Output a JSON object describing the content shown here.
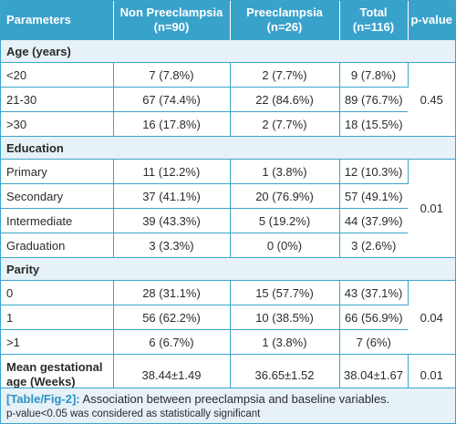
{
  "headers": [
    "Parameters",
    "Non Preeclampsia\n(n=90)",
    "Preeclampsia\n(n=26)",
    "Total\n(n=116)",
    "p-value"
  ],
  "sections": [
    {
      "title": "Age (years)",
      "p_value": "0.45",
      "rows": [
        [
          "<20",
          "7 (7.8%)",
          "2 (7.7%)",
          "9 (7.8%)"
        ],
        [
          "21-30",
          "67 (74.4%)",
          "22 (84.6%)",
          "89 (76.7%)"
        ],
        [
          ">30",
          "16 (17.8%)",
          "2 (7.7%)",
          "18 (15.5%)"
        ]
      ]
    },
    {
      "title": "Education",
      "p_value": "0.01",
      "rows": [
        [
          "Primary",
          "11 (12.2%)",
          "1 (3.8%)",
          "12 (10.3%)"
        ],
        [
          "Secondary",
          "37 (41.1%)",
          "20 (76.9%)",
          "57 (49.1%)"
        ],
        [
          "Intermediate",
          "39 (43.3%)",
          "5 (19.2%)",
          "44 (37.9%)"
        ],
        [
          "Graduation",
          "3 (3.3%)",
          "0 (0%)",
          "3 (2.6%)"
        ]
      ]
    },
    {
      "title": "Parity",
      "p_value": "0.04",
      "rows": [
        [
          "0",
          "28 (31.1%)",
          "15 (57.7%)",
          "43 (37.1%)"
        ],
        [
          "1",
          "56  (62.2%)",
          "10 (38.5%)",
          "66 (56.9%)"
        ],
        [
          ">1",
          "6 (6.7%)",
          "1 (3.8%)",
          "7 (6%)"
        ]
      ]
    }
  ],
  "mean_row": {
    "label": "Mean gestational\nage (Weeks)",
    "values": [
      "38.44±1.49",
      "36.65±1.52",
      "38.04±1.67"
    ],
    "p_value": "0.01"
  },
  "caption": {
    "ref": "[Table/Fig-2]:",
    "text": " Association between preeclampsia and baseline variables.",
    "note": "p-value<0.05 was considered as statistically significant"
  }
}
